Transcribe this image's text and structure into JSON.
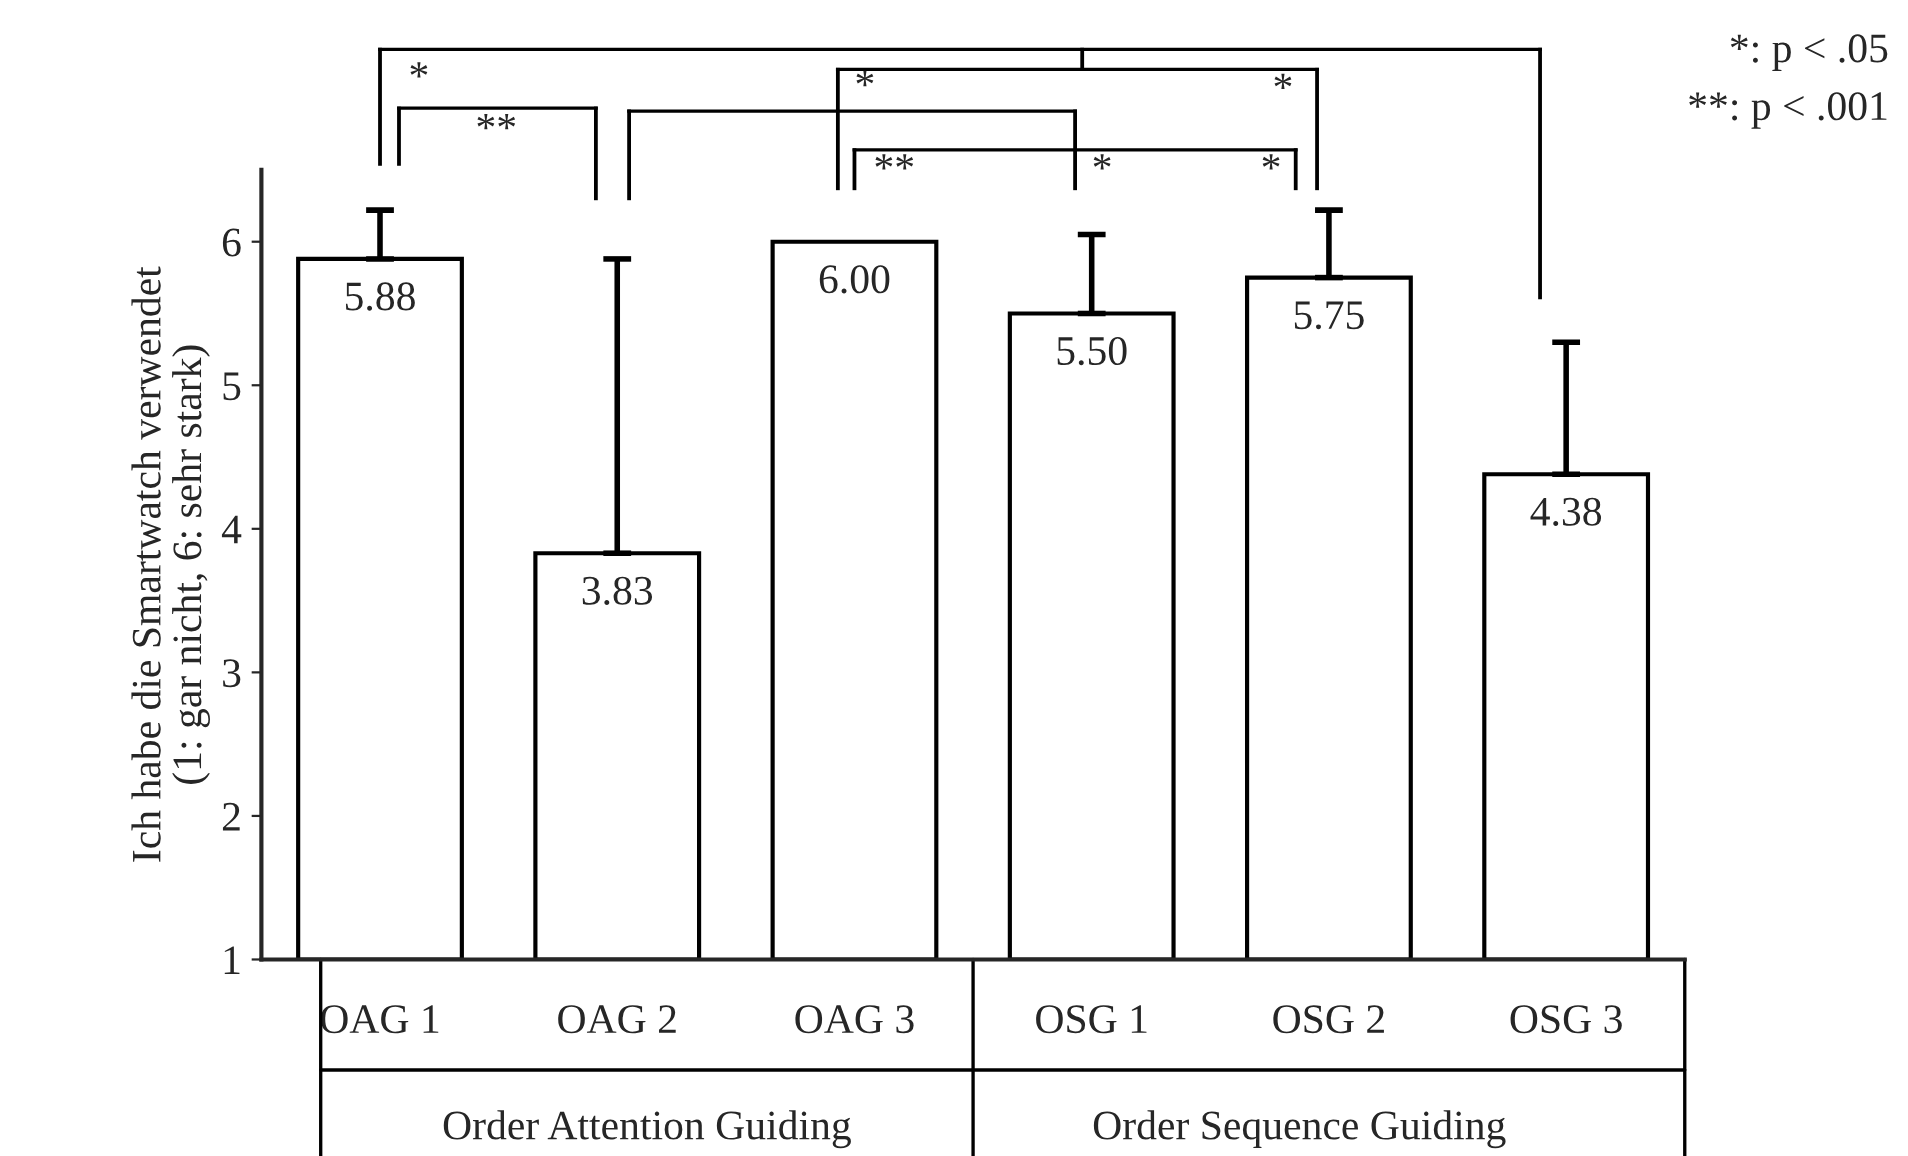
{
  "chart_data": {
    "type": "bar",
    "ylabel": "Ich habe die Smartwatch verwendet\n(1: gar nicht, 6: sehr stark)",
    "categories": [
      "OAG 1",
      "OAG 2",
      "OAG 3",
      "OSG 1",
      "OSG 2",
      "OSG 3"
    ],
    "values": [
      5.88,
      3.83,
      6.0,
      5.5,
      5.75,
      4.38
    ],
    "errors": [
      [
        5.88,
        6.22
      ],
      [
        3.83,
        5.88
      ],
      null,
      [
        5.5,
        6.05
      ],
      [
        5.75,
        6.22
      ],
      [
        4.38,
        5.3
      ]
    ],
    "color": "#ffffff",
    "ylim": [
      1,
      6.5
    ],
    "yticks": [
      1,
      2,
      3,
      4,
      5,
      6
    ],
    "value_labels": [
      "5.88",
      "3.83",
      "6.00",
      "5.50",
      "5.75",
      "4.38"
    ],
    "grid": false,
    "annotations": [
      "*",
      "**",
      "*",
      "*",
      "**",
      "*",
      "*",
      "*: p < .05",
      "**: p < .001",
      "Order Attention Guiding",
      "Order Sequence Guiding"
    ]
  }
}
